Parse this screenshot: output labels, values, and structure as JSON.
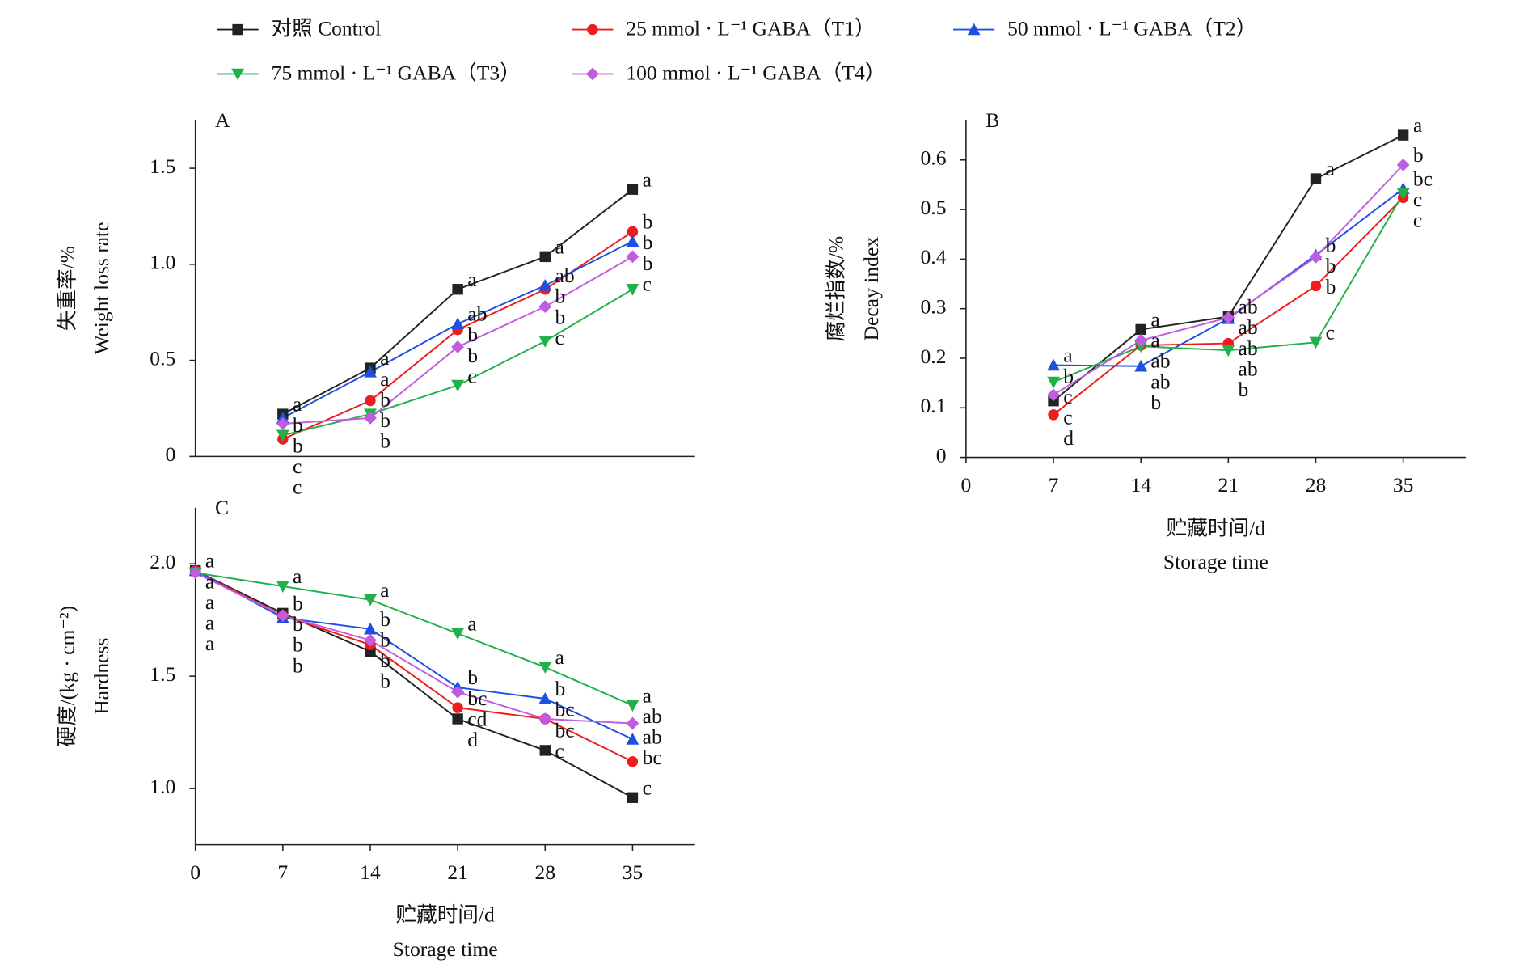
{
  "chart_data": [
    {
      "type": "line",
      "panel": "A",
      "ylabel": [
        "失重率/%",
        "Weight loss rate"
      ],
      "x": [
        7,
        14,
        21,
        28,
        35
      ],
      "xlim": [
        0,
        40
      ],
      "ylim": [
        0,
        1.75
      ],
      "yticks": [
        0,
        0.5,
        {
          "value": 1,
          "label": "1.0"
        },
        1.5
      ],
      "series": [
        {
          "name": "对照 Control",
          "color": "#222222",
          "marker": "square",
          "values": [
            0.22,
            0.46,
            0.87,
            1.04,
            1.39
          ],
          "letters": [
            "a",
            "a",
            "a",
            "a",
            "a"
          ]
        },
        {
          "name": "25 mmol · L⁻¹ GABA（T1）",
          "color": "#ee1c1c",
          "marker": "circle",
          "values": [
            0.09,
            0.29,
            0.66,
            0.87,
            1.17
          ],
          "letters": [
            "c",
            "b",
            "b",
            "b",
            "b"
          ]
        },
        {
          "name": "50 mmol · L⁻¹ GABA（T2）",
          "color": "#1f4fe0",
          "marker": "triangle-up",
          "values": [
            0.2,
            0.44,
            0.69,
            0.89,
            1.12
          ],
          "letters": [
            "b",
            "a",
            "ab",
            "ab",
            "b"
          ]
        },
        {
          "name": "75 mmol · L⁻¹ GABA（T3）",
          "color": "#22b04a",
          "marker": "triangle-down",
          "values": [
            0.11,
            0.22,
            0.37,
            0.6,
            0.87
          ],
          "letters": [
            "c",
            "b",
            "c",
            "c",
            "c"
          ]
        },
        {
          "name": "100 mmol · L⁻¹ GABA（T4）",
          "color": "#c05ce0",
          "marker": "diamond",
          "values": [
            0.17,
            0.2,
            0.57,
            0.78,
            1.04
          ],
          "letters": [
            "b",
            "b",
            "b",
            "b",
            "b"
          ]
        }
      ]
    },
    {
      "type": "line",
      "panel": "B",
      "ylabel": [
        "腐烂指数/%",
        "Decay index"
      ],
      "xlabel": [
        "贮藏时间/d",
        "Storage time"
      ],
      "x": [
        7,
        14,
        21,
        28,
        35
      ],
      "xlim": [
        0,
        40
      ],
      "ylim": [
        0,
        0.68
      ],
      "xticks": [
        0,
        7,
        14,
        21,
        28,
        35
      ],
      "yticks": [
        0,
        0.1,
        0.2,
        0.3,
        0.4,
        0.5,
        0.6
      ],
      "series": [
        {
          "color": "#222222",
          "marker": "square",
          "values": [
            0.114,
            0.258,
            0.284,
            0.562,
            0.65
          ],
          "letters": [
            "c",
            "a",
            "ab",
            "a",
            "a"
          ]
        },
        {
          "color": "#ee1c1c",
          "marker": "circle",
          "values": [
            0.086,
            0.226,
            0.23,
            0.346,
            0.524
          ],
          "letters": [
            "d",
            "ab",
            "ab",
            "b",
            "c"
          ]
        },
        {
          "color": "#1f4fe0",
          "marker": "triangle-up",
          "values": [
            0.186,
            0.184,
            0.28,
            0.408,
            0.542
          ],
          "letters": [
            "a",
            "b",
            "ab",
            "b",
            "bc"
          ]
        },
        {
          "color": "#22b04a",
          "marker": "triangle-down",
          "values": [
            0.152,
            0.224,
            0.216,
            0.232,
            0.532
          ],
          "letters": [
            "b",
            "ab",
            "b",
            "c",
            "c"
          ]
        },
        {
          "color": "#c05ce0",
          "marker": "diamond",
          "values": [
            0.126,
            0.236,
            0.282,
            0.404,
            0.59
          ],
          "letters": [
            "c",
            "a",
            "ab",
            "b",
            "b"
          ]
        }
      ]
    },
    {
      "type": "line",
      "panel": "C",
      "ylabel": [
        "硬度/(kg · cm⁻²)",
        "Hardness"
      ],
      "xlabel": [
        "贮藏时间/d",
        "Storage time"
      ],
      "x": [
        0,
        7,
        14,
        21,
        28,
        35
      ],
      "xlim": [
        0,
        40
      ],
      "ylim": [
        0.75,
        2.25
      ],
      "xticks": [
        0,
        7,
        14,
        21,
        28,
        35
      ],
      "yticks": [
        {
          "value": 1,
          "label": "1.0"
        },
        1.5,
        {
          "value": 2,
          "label": "2.0"
        }
      ],
      "series": [
        {
          "color": "#222222",
          "marker": "square",
          "values": [
            1.97,
            1.78,
            1.61,
            1.31,
            1.17,
            0.96
          ],
          "letters": [
            "a",
            "b",
            "b",
            "d",
            "c",
            "c"
          ]
        },
        {
          "color": "#ee1c1c",
          "marker": "circle",
          "values": [
            1.97,
            1.77,
            1.64,
            1.36,
            1.31,
            1.12
          ],
          "letters": [
            "a",
            "b",
            "b",
            "cd",
            "bc",
            "bc"
          ]
        },
        {
          "color": "#1f4fe0",
          "marker": "triangle-up",
          "values": [
            1.97,
            1.76,
            1.71,
            1.45,
            1.4,
            1.22
          ],
          "letters": [
            "a",
            "b",
            "b",
            "b",
            "b",
            "ab"
          ]
        },
        {
          "color": "#22b04a",
          "marker": "triangle-down",
          "values": [
            1.96,
            1.9,
            1.84,
            1.69,
            1.54,
            1.37
          ],
          "letters": [
            "a",
            "a",
            "a",
            "a",
            "a",
            "a"
          ]
        },
        {
          "color": "#c05ce0",
          "marker": "diamond",
          "values": [
            1.96,
            1.77,
            1.66,
            1.43,
            1.31,
            1.29
          ],
          "letters": [
            "a",
            "b",
            "b",
            "bc",
            "bc",
            "ab"
          ]
        }
      ]
    }
  ]
}
